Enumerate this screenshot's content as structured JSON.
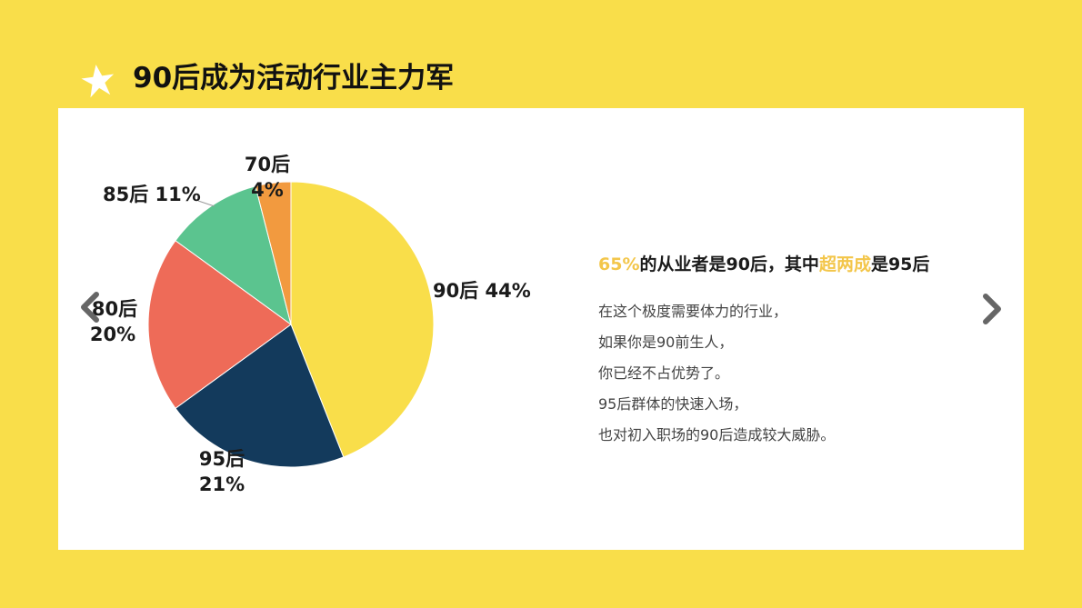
{
  "header": {
    "title": "90后成为活动行业主力军",
    "icon": "star-icon"
  },
  "chart_data": {
    "type": "pie",
    "slices": [
      {
        "label": "90后",
        "value": 44,
        "color": "#F9DE4A"
      },
      {
        "label": "95后",
        "value": 21,
        "color": "#133A5C"
      },
      {
        "label": "80后",
        "value": 20,
        "color": "#EE6B58"
      },
      {
        "label": "85后",
        "value": 11,
        "color": "#5BC48F"
      },
      {
        "label": "70后",
        "value": 4,
        "color": "#F29A3F"
      }
    ],
    "labels": {
      "s90": "90后 44%",
      "s95a": "95后",
      "s95b": "21%",
      "s80a": "80后",
      "s80b": "20%",
      "s85": "85后 11%",
      "s70a": "70后",
      "s70b": "4%"
    }
  },
  "text": {
    "headline_pct": "65%",
    "headline_mid": "的从业者是90后，其中",
    "headline_hl": "超两成",
    "headline_end": "是95后",
    "lines": [
      "在这个极度需要体力的行业，",
      "如果你是90前生人，",
      "你已经不占优势了。",
      "95后群体的快速入场，",
      "也对初入职场的90后造成较大威胁。"
    ]
  },
  "nav": {
    "prev_icon": "chevron-left-icon",
    "next_icon": "chevron-right-icon"
  },
  "colors": {
    "background": "#F9DE4A",
    "panel": "#FFFFFF",
    "highlight": "#F3C64A"
  }
}
